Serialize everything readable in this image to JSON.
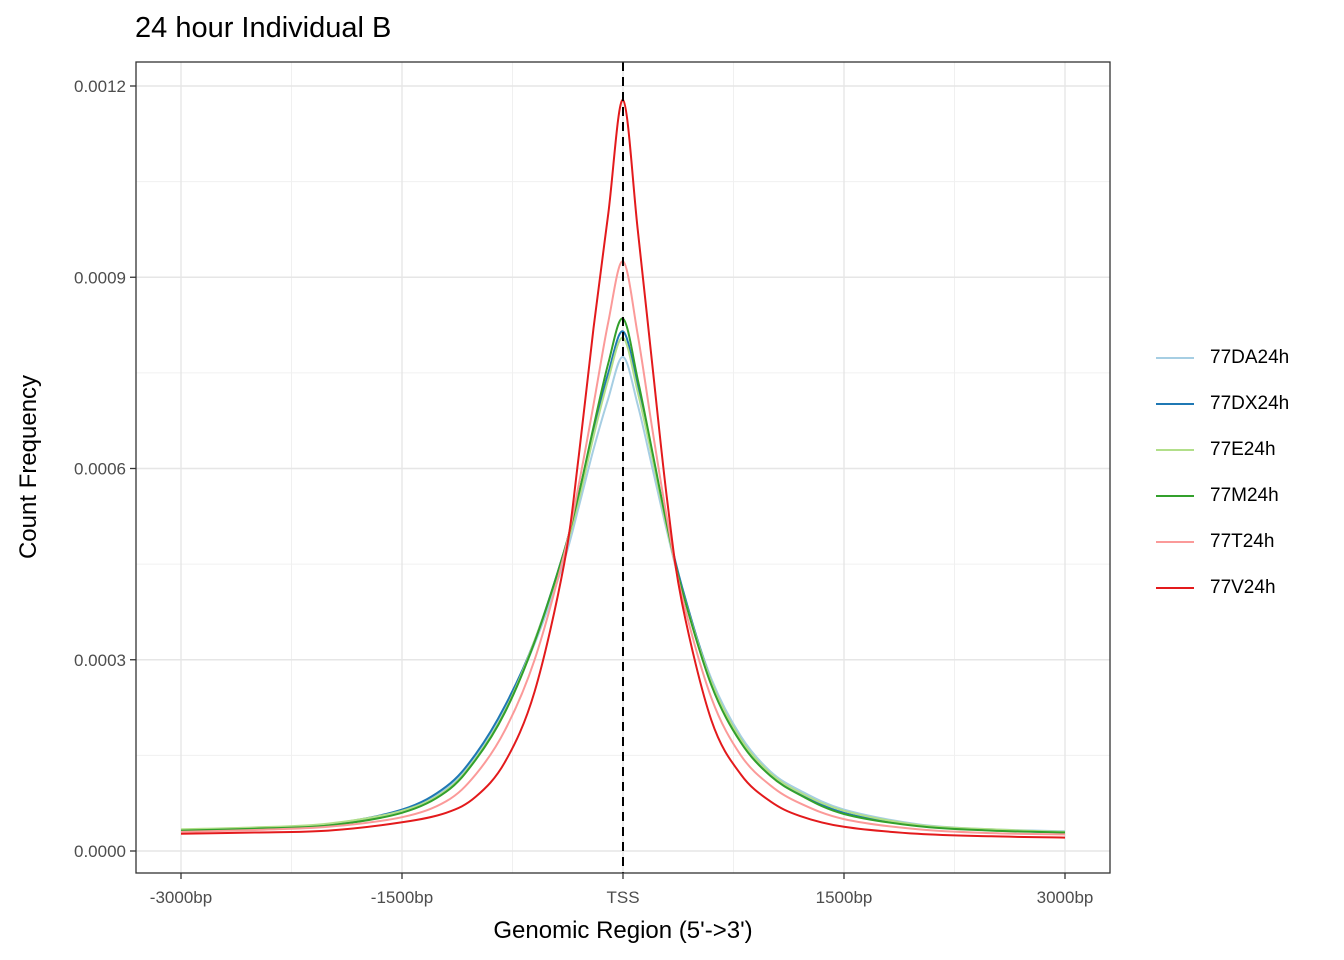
{
  "chart_data": {
    "type": "line",
    "title": "24 hour Individual B",
    "xlabel": "Genomic Region (5'->3')",
    "ylabel": "Count Frequency",
    "x_range": [
      -3000,
      3000
    ],
    "ylim": [
      0,
      0.00123
    ],
    "x_ticks": [
      {
        "value": -3000,
        "label": "-3000bp"
      },
      {
        "value": -1500,
        "label": "-1500bp"
      },
      {
        "value": 0,
        "label": "TSS"
      },
      {
        "value": 1500,
        "label": "1500bp"
      },
      {
        "value": 3000,
        "label": "3000bp"
      }
    ],
    "y_ticks": [
      {
        "value": 0.0,
        "label": "0.0000"
      },
      {
        "value": 0.0003,
        "label": "0.0003"
      },
      {
        "value": 0.0006,
        "label": "0.0006"
      },
      {
        "value": 0.0009,
        "label": "0.0009"
      },
      {
        "value": 0.0012,
        "label": "0.0012"
      }
    ],
    "reference_line": {
      "x": 0,
      "style": "dashed"
    },
    "grid": true,
    "legend_position": "right",
    "x": [
      -3000,
      -2500,
      -2000,
      -1500,
      -1200,
      -1000,
      -800,
      -600,
      -400,
      -300,
      -200,
      -100,
      0,
      100,
      200,
      300,
      400,
      600,
      800,
      1000,
      1200,
      1500,
      2000,
      2500,
      3000
    ],
    "series": [
      {
        "name": "77DA24h",
        "color": "#a6cee3",
        "values": [
          3.3e-05,
          3.6e-05,
          4.1e-05,
          6.2e-05,
          9.8e-05,
          0.00015,
          0.000225,
          0.000325,
          0.000455,
          0.00054,
          0.00063,
          0.00071,
          0.000775,
          0.0007,
          0.0006,
          0.0005,
          0.00041,
          0.00027,
          0.00018,
          0.000125,
          9.5e-05,
          6.5e-05,
          4.2e-05,
          3.4e-05,
          3.1e-05
        ]
      },
      {
        "name": "77DX24h",
        "color": "#1f78b4",
        "values": [
          3.1e-05,
          3.5e-05,
          4.2e-05,
          6.5e-05,
          0.000101,
          0.000152,
          0.000228,
          0.00033,
          0.00047,
          0.00056,
          0.00066,
          0.00075,
          0.000815,
          0.00073,
          0.00062,
          0.00051,
          0.000415,
          0.000265,
          0.000175,
          0.00012,
          9e-05,
          6e-05,
          4e-05,
          3.3e-05,
          2.9e-05
        ]
      },
      {
        "name": "77E24h",
        "color": "#b2df8a",
        "values": [
          3.4e-05,
          3.7e-05,
          4.3e-05,
          6.3e-05,
          9.5e-05,
          0.000145,
          0.00022,
          0.00033,
          0.000465,
          0.00055,
          0.00065,
          0.00074,
          0.000805,
          0.00072,
          0.000615,
          0.000505,
          0.00041,
          0.000265,
          0.000175,
          0.000122,
          9.2e-05,
          6.3e-05,
          4.1e-05,
          3.4e-05,
          3e-05
        ]
      },
      {
        "name": "77M24h",
        "color": "#33a02c",
        "values": [
          3.2e-05,
          3.5e-05,
          4e-05,
          6e-05,
          9.3e-05,
          0.000143,
          0.000218,
          0.000328,
          0.00047,
          0.00056,
          0.000665,
          0.000765,
          0.000835,
          0.00074,
          0.000625,
          0.00051,
          0.00041,
          0.00026,
          0.00017,
          0.000118,
          8.8e-05,
          5.8e-05,
          3.9e-05,
          3.2e-05,
          2.9e-05
        ]
      },
      {
        "name": "77T24h",
        "color": "#fb9a99",
        "values": [
          3e-05,
          3.3e-05,
          3.8e-05,
          5.3e-05,
          7.8e-05,
          0.00012,
          0.00019,
          0.0003,
          0.000465,
          0.000575,
          0.0007,
          0.00083,
          0.000925,
          0.00081,
          0.00066,
          0.00052,
          0.0004,
          0.00024,
          0.00015,
          0.000103,
          7.5e-05,
          5e-05,
          3.4e-05,
          2.8e-05,
          2.6e-05
        ]
      },
      {
        "name": "77V24h",
        "color": "#e31a1c",
        "values": [
          2.7e-05,
          2.9e-05,
          3.2e-05,
          4.5e-05,
          6e-05,
          8.5e-05,
          0.00014,
          0.00025,
          0.00045,
          0.00062,
          0.00082,
          0.001,
          0.001178,
          0.000975,
          0.00076,
          0.00055,
          0.00039,
          0.000205,
          0.00012,
          7.8e-05,
          5.5e-05,
          3.8e-05,
          2.7e-05,
          2.3e-05,
          2.1e-05
        ]
      }
    ]
  }
}
